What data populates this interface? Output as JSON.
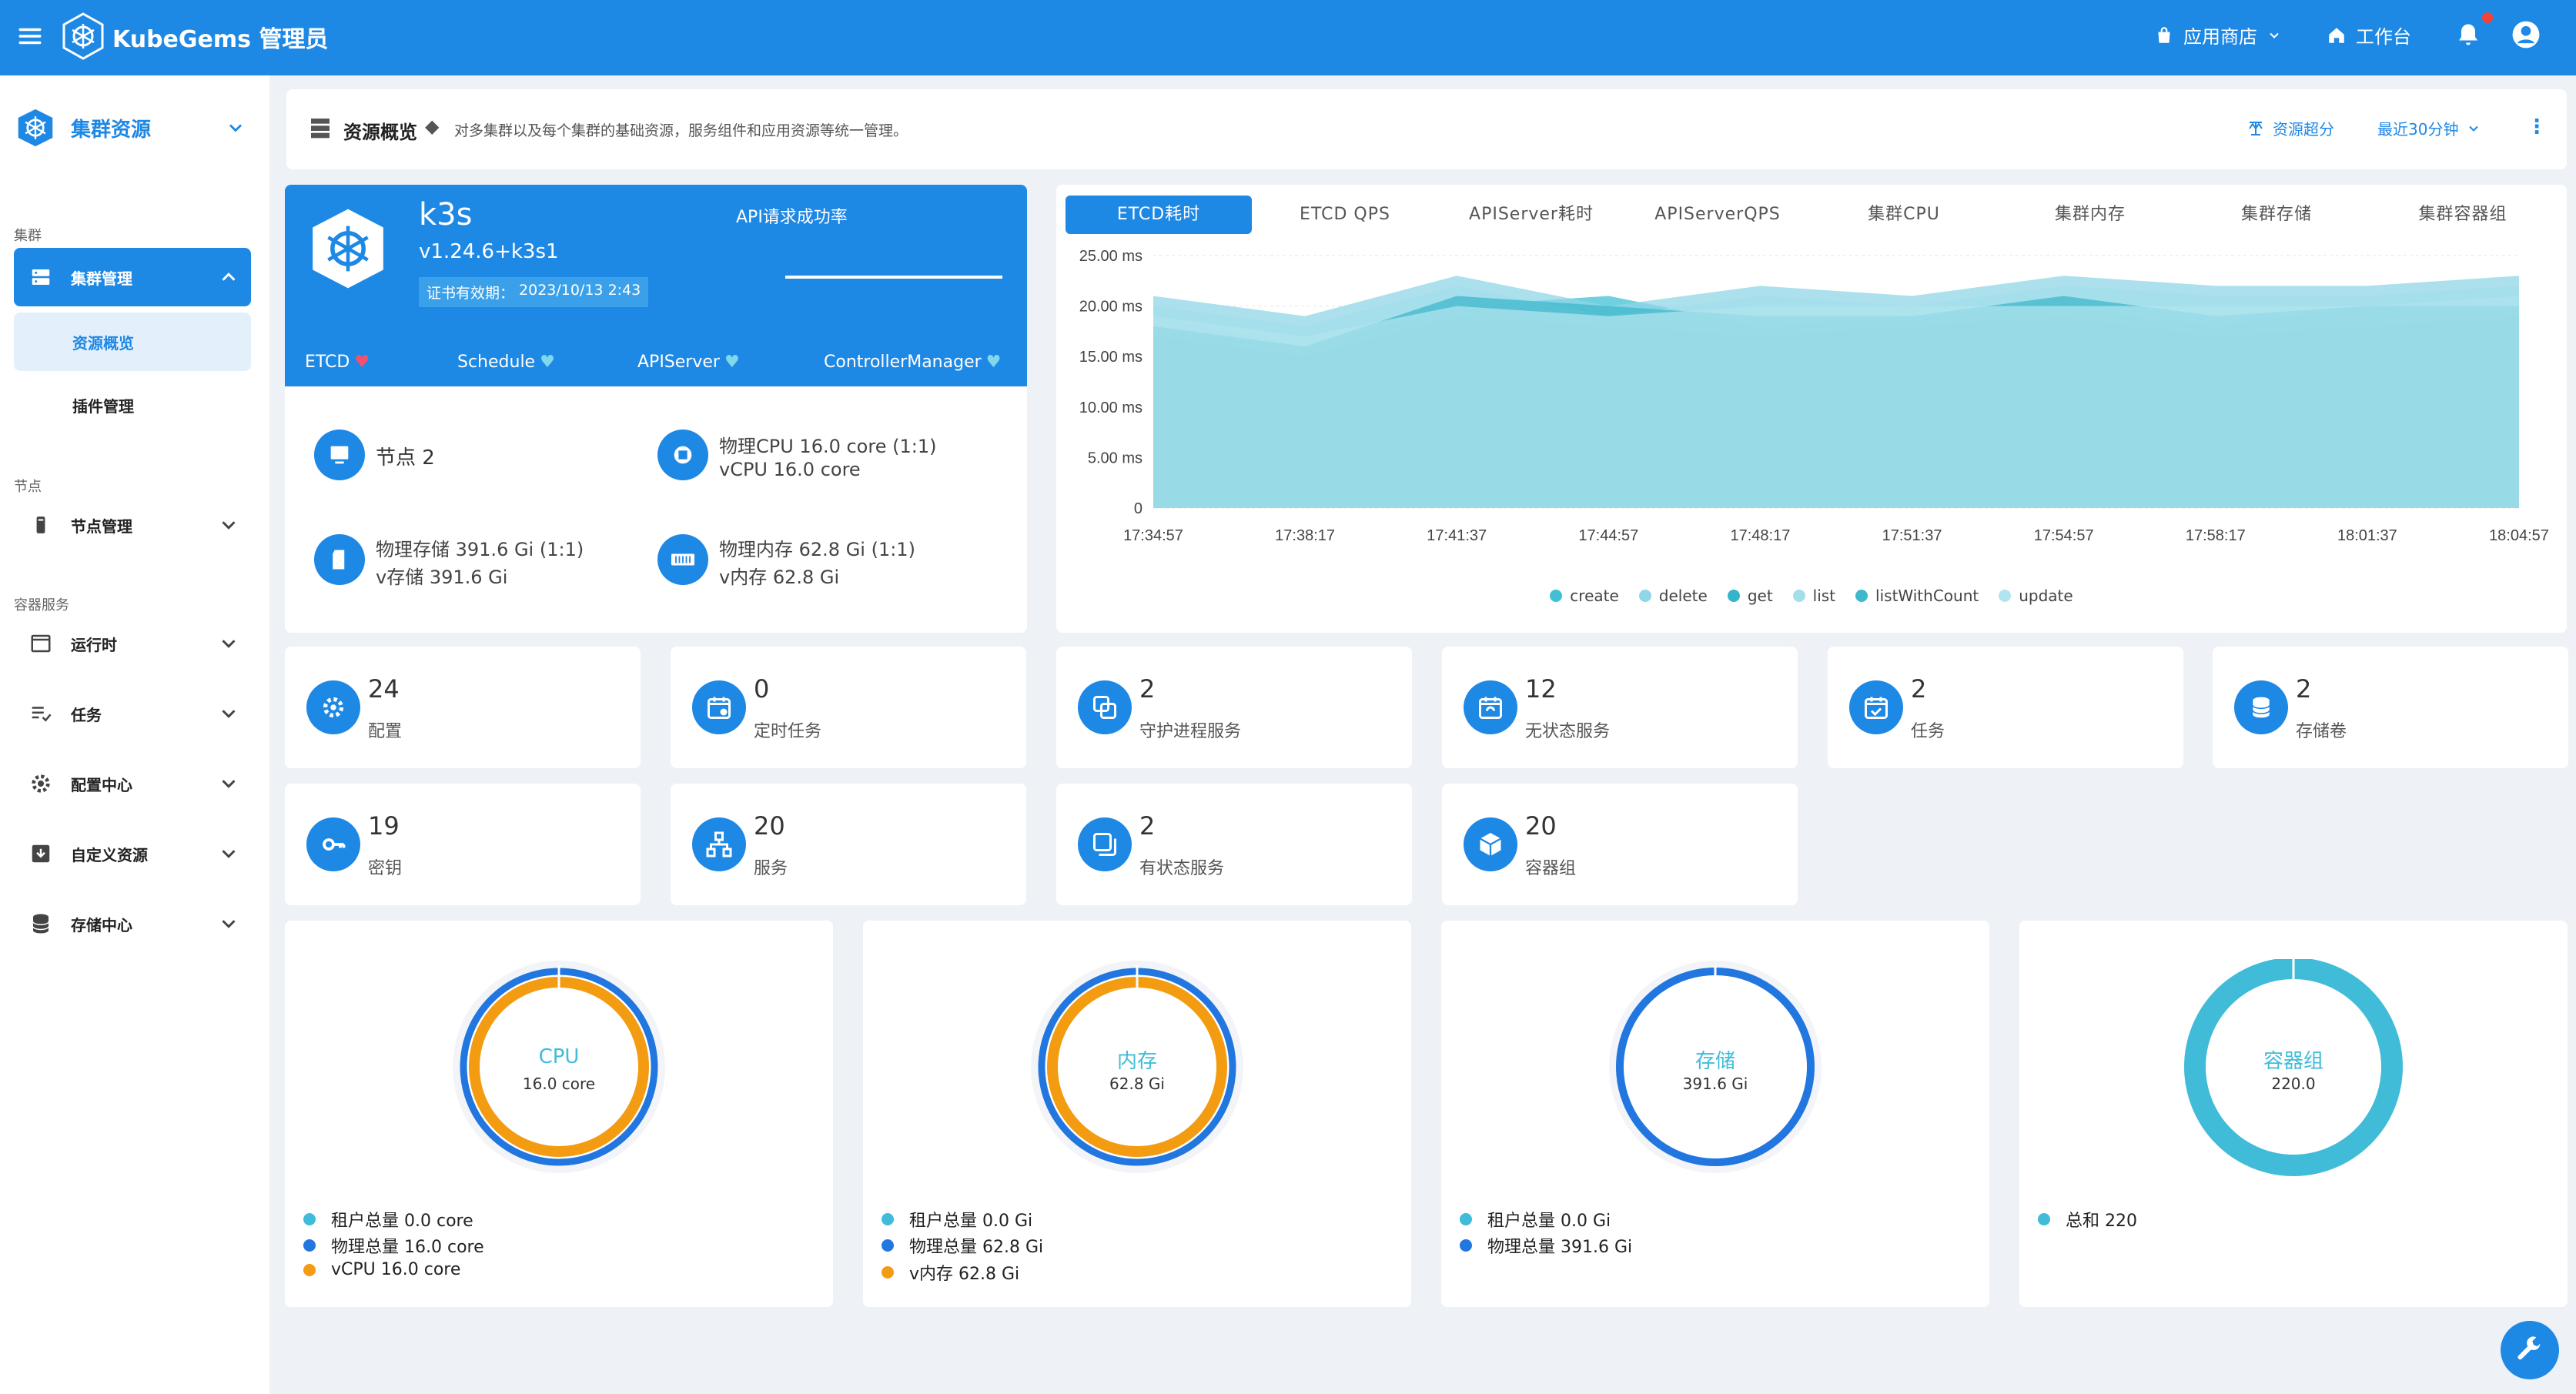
{
  "topbar": {
    "brand": "KubeGems 管理员",
    "app_store": "应用商店",
    "workbench": "工作台"
  },
  "sidebar": {
    "header": "集群资源",
    "sections": {
      "cluster": "集群",
      "node": "节点",
      "container": "容器服务"
    },
    "items": {
      "cluster_mgmt": "集群管理",
      "resource_overview": "资源概览",
      "plugin_mgmt": "插件管理",
      "node_mgmt": "节点管理",
      "runtime": "运行时",
      "task": "任务",
      "config_center": "配置中心",
      "custom_resource": "自定义资源",
      "storage_center": "存储中心"
    }
  },
  "overview": {
    "title": "资源概览",
    "description": "对多集群以及每个集群的基础资源，服务组件和应用资源等统一管理。",
    "oversell": "资源超分",
    "time_range": "最近30分钟"
  },
  "cluster": {
    "name": "k3s",
    "version": "v1.24.6+k3s1",
    "cert_label": "证书有效期：",
    "cert_date": "2023/10/13 2:43",
    "api_success_label": "API请求成功率",
    "components": [
      "ETCD",
      "Schedule",
      "APIServer",
      "ControllerManager"
    ],
    "nodes": "节点 2",
    "physical_cpu": "物理CPU 16.0 core (1:1)",
    "vcpu": "vCPU 16.0 core",
    "physical_storage": "物理存储 391.6 Gi (1:1)",
    "vstorage": "v存储 391.6 Gi",
    "physical_memory": "物理内存 62.8 Gi (1:1)",
    "vmemory": "v内存 62.8 Gi"
  },
  "metric_tabs": [
    "ETCD耗时",
    "ETCD QPS",
    "APIServer耗时",
    "APIServerQPS",
    "集群CPU",
    "集群内存",
    "集群存储",
    "集群容器组"
  ],
  "chart_data": {
    "type": "area",
    "x": [
      "17:34:57",
      "17:38:17",
      "17:41:37",
      "17:44:57",
      "17:48:17",
      "17:51:37",
      "17:54:57",
      "17:58:17",
      "18:01:37",
      "18:04:57"
    ],
    "y_ticks": [
      "0",
      "5.00 ms",
      "10.00 ms",
      "15.00 ms",
      "20.00 ms",
      "25.00 ms"
    ],
    "ylim": [
      0,
      25
    ],
    "series": [
      {
        "name": "create",
        "color": "#40c0d4",
        "values": [
          19,
          16,
          20,
          21,
          18,
          19,
          20,
          18,
          20,
          21
        ]
      },
      {
        "name": "delete",
        "color": "#8fd6e6",
        "values": [
          21,
          19,
          23,
          20,
          22,
          21,
          23,
          22,
          22,
          23
        ]
      },
      {
        "name": "get",
        "color": "#34b3c9",
        "values": [
          17,
          15,
          19,
          18,
          17,
          18,
          19,
          17,
          18,
          19
        ]
      },
      {
        "name": "list",
        "color": "#a3dfeb",
        "values": [
          20,
          18,
          22,
          19,
          21,
          20,
          22,
          21,
          21,
          22
        ]
      },
      {
        "name": "listWithCount",
        "color": "#3fb8cc",
        "values": [
          18,
          16,
          21,
          20,
          19,
          19,
          21,
          19,
          20,
          20
        ]
      },
      {
        "name": "update",
        "color": "#b0e4ee",
        "values": [
          19,
          17,
          20,
          19,
          20,
          20,
          20,
          20,
          20,
          21
        ]
      }
    ],
    "legend_position": "bottom"
  },
  "stats": [
    {
      "num": "24",
      "label": "配置",
      "icon": "gear-icon"
    },
    {
      "num": "0",
      "label": "定时任务",
      "icon": "calendar-clock-icon"
    },
    {
      "num": "2",
      "label": "守护进程服务",
      "icon": "copy-icon"
    },
    {
      "num": "12",
      "label": "无状态服务",
      "icon": "calendar-sync-icon"
    },
    {
      "num": "2",
      "label": "任务",
      "icon": "calendar-check-icon"
    },
    {
      "num": "2",
      "label": "存储卷",
      "icon": "database-icon"
    },
    {
      "num": "19",
      "label": "密钥",
      "icon": "key-icon"
    },
    {
      "num": "20",
      "label": "服务",
      "icon": "network-icon"
    },
    {
      "num": "2",
      "label": "有状态服务",
      "icon": "stack-icon"
    },
    {
      "num": "20",
      "label": "容器组",
      "icon": "box-icon"
    }
  ],
  "rings": [
    {
      "title": "CPU",
      "value": "16.0 core",
      "legend": [
        "租户总量 0.0 core",
        "物理总量 16.0 core",
        "vCPU 16.0 core"
      ],
      "colors": [
        "#40bcd8",
        "#2176e0",
        "#f39c12"
      ]
    },
    {
      "title": "内存",
      "value": "62.8 Gi",
      "legend": [
        "租户总量 0.0 Gi",
        "物理总量 62.8 Gi",
        "v内存 62.8 Gi"
      ],
      "colors": [
        "#40bcd8",
        "#2176e0",
        "#f39c12"
      ]
    },
    {
      "title": "存储",
      "value": "391.6 Gi",
      "legend": [
        "租户总量 0.0 Gi",
        "物理总量 391.6 Gi"
      ],
      "colors": [
        "#40bcd8",
        "#2176e0"
      ]
    },
    {
      "title": "容器组",
      "value": "220.0",
      "legend": [
        "总和 220"
      ],
      "colors": [
        "#40bcd8"
      ]
    }
  ]
}
